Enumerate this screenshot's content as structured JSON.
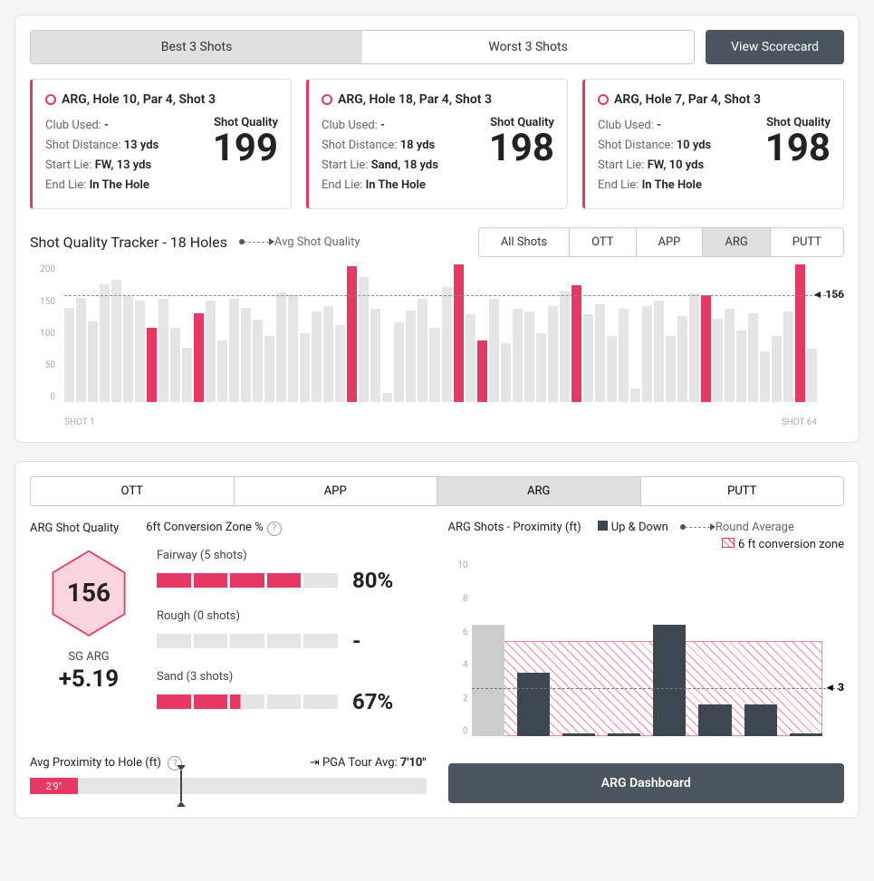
{
  "colors": {
    "accent": "#e63862",
    "dark": "#4a5560",
    "bar_gray": "#e5e5e5",
    "bar_dark": "#3d474f"
  },
  "top": {
    "best_tab": "Best 3 Shots",
    "worst_tab": "Worst 3 Shots",
    "scorecard_btn": "View Scorecard",
    "sq_label": "Shot Quality",
    "cards": [
      {
        "title": "ARG, Hole 10, Par 4, Shot 3",
        "club": "Club Used: ",
        "club_v": "-",
        "dist": "Shot Distance: ",
        "dist_v": "13 yds",
        "start": "Start Lie: ",
        "start_v": "FW, 13 yds",
        "end": "End Lie: ",
        "end_v": "In The Hole",
        "sq": "199"
      },
      {
        "title": "ARG, Hole 18, Par 4, Shot 3",
        "club": "Club Used: ",
        "club_v": "-",
        "dist": "Shot Distance: ",
        "dist_v": "18 yds",
        "start": "Start Lie: ",
        "start_v": "Sand, 18 yds",
        "end": "End Lie: ",
        "end_v": "In The Hole",
        "sq": "198"
      },
      {
        "title": "ARG, Hole 7, Par 4, Shot 3",
        "club": "Club Used: ",
        "club_v": "-",
        "dist": "Shot Distance: ",
        "dist_v": "10 yds",
        "start": "Start Lie: ",
        "start_v": "FW, 10 yds",
        "end": "End Lie: ",
        "end_v": "In The Hole",
        "sq": "198"
      }
    ]
  },
  "tracker": {
    "title": "Shot Quality Tracker - 18 Holes",
    "avg_label": "Avg Shot Quality",
    "tabs": [
      "All Shots",
      "OTT",
      "APP",
      "ARG",
      "PUTT"
    ],
    "active_tab": 3,
    "ymax": 200,
    "yticks": [
      "200",
      "150",
      "100",
      "50",
      "0"
    ],
    "avg": 156,
    "avg_text": "156",
    "shot_start": "SHOT 1",
    "shot_end": "SHOT 64",
    "bars": [
      {
        "v": 138,
        "h": false
      },
      {
        "v": 152,
        "h": false
      },
      {
        "v": 118,
        "h": false
      },
      {
        "v": 172,
        "h": false
      },
      {
        "v": 178,
        "h": false
      },
      {
        "v": 154,
        "h": false
      },
      {
        "v": 148,
        "h": false
      },
      {
        "v": 108,
        "h": true
      },
      {
        "v": 150,
        "h": false
      },
      {
        "v": 108,
        "h": false
      },
      {
        "v": 80,
        "h": false
      },
      {
        "v": 130,
        "h": true
      },
      {
        "v": 148,
        "h": false
      },
      {
        "v": 90,
        "h": false
      },
      {
        "v": 150,
        "h": false
      },
      {
        "v": 138,
        "h": false
      },
      {
        "v": 120,
        "h": false
      },
      {
        "v": 96,
        "h": false
      },
      {
        "v": 160,
        "h": false
      },
      {
        "v": 156,
        "h": false
      },
      {
        "v": 100,
        "h": false
      },
      {
        "v": 132,
        "h": false
      },
      {
        "v": 140,
        "h": false
      },
      {
        "v": 112,
        "h": false
      },
      {
        "v": 198,
        "h": true
      },
      {
        "v": 182,
        "h": false
      },
      {
        "v": 136,
        "h": false
      },
      {
        "v": 14,
        "h": false
      },
      {
        "v": 116,
        "h": false
      },
      {
        "v": 134,
        "h": false
      },
      {
        "v": 150,
        "h": false
      },
      {
        "v": 108,
        "h": false
      },
      {
        "v": 168,
        "h": false
      },
      {
        "v": 200,
        "h": true
      },
      {
        "v": 128,
        "h": false
      },
      {
        "v": 90,
        "h": true
      },
      {
        "v": 150,
        "h": false
      },
      {
        "v": 86,
        "h": false
      },
      {
        "v": 136,
        "h": false
      },
      {
        "v": 132,
        "h": false
      },
      {
        "v": 100,
        "h": false
      },
      {
        "v": 140,
        "h": false
      },
      {
        "v": 162,
        "h": false
      },
      {
        "v": 170,
        "h": true
      },
      {
        "v": 128,
        "h": false
      },
      {
        "v": 142,
        "h": false
      },
      {
        "v": 96,
        "h": false
      },
      {
        "v": 136,
        "h": false
      },
      {
        "v": 20,
        "h": false
      },
      {
        "v": 140,
        "h": false
      },
      {
        "v": 148,
        "h": false
      },
      {
        "v": 96,
        "h": false
      },
      {
        "v": 126,
        "h": false
      },
      {
        "v": 158,
        "h": false
      },
      {
        "v": 156,
        "h": true
      },
      {
        "v": 122,
        "h": false
      },
      {
        "v": 136,
        "h": false
      },
      {
        "v": 104,
        "h": false
      },
      {
        "v": 130,
        "h": false
      },
      {
        "v": 74,
        "h": false
      },
      {
        "v": 96,
        "h": false
      },
      {
        "v": 132,
        "h": false
      },
      {
        "v": 200,
        "h": true
      },
      {
        "v": 78,
        "h": false
      }
    ]
  },
  "panel2": {
    "tabs": [
      "OTT",
      "APP",
      "ARG",
      "PUTT"
    ],
    "active_tab": 2,
    "left_title": "ARG Shot Quality",
    "conv_title": "6ft Conversion Zone %",
    "hex_val": "156",
    "sg_label": "SG ARG",
    "sg_val": "+5.19",
    "conv_rows": [
      {
        "label": "Fairway (5 shots)",
        "segs": [
          1,
          1,
          1,
          1,
          0
        ],
        "pct": "80%"
      },
      {
        "label": "Rough (0 shots)",
        "segs": [
          0,
          0,
          0,
          0,
          0
        ],
        "pct": "-"
      },
      {
        "label": "Sand (3 shots)",
        "segs": [
          1,
          1,
          0.3,
          0,
          0
        ],
        "pct": "67%"
      }
    ],
    "avg_prox_label": "Avg Proximity to Hole (ft)",
    "pga_label": "PGA Tour Avg: ",
    "pga_val": "7'10\"",
    "slider_val": "2'9\"",
    "slider_pct": 12,
    "slider_mark_pct": 38,
    "prox_title": "ARG Shots - Proximity (ft)",
    "leg_updown": "Up & Down",
    "leg_round": "Round Average",
    "leg_zone": "6 ft conversion zone",
    "prox_ymax": 11,
    "prox_yticks": [
      "10",
      "8",
      "6",
      "4",
      "2",
      "0"
    ],
    "prox_zone_top": 6,
    "prox_avg": 3,
    "prox_avg_text": "3",
    "prox_bars": [
      {
        "v": 7,
        "up": false
      },
      {
        "v": 4,
        "up": true
      },
      {
        "v": 0.2,
        "up": true
      },
      {
        "v": 0.2,
        "up": true
      },
      {
        "v": 7,
        "up": true
      },
      {
        "v": 2,
        "up": true
      },
      {
        "v": 2,
        "up": true
      },
      {
        "v": 0.2,
        "up": true
      }
    ],
    "dash_btn": "ARG Dashboard"
  }
}
